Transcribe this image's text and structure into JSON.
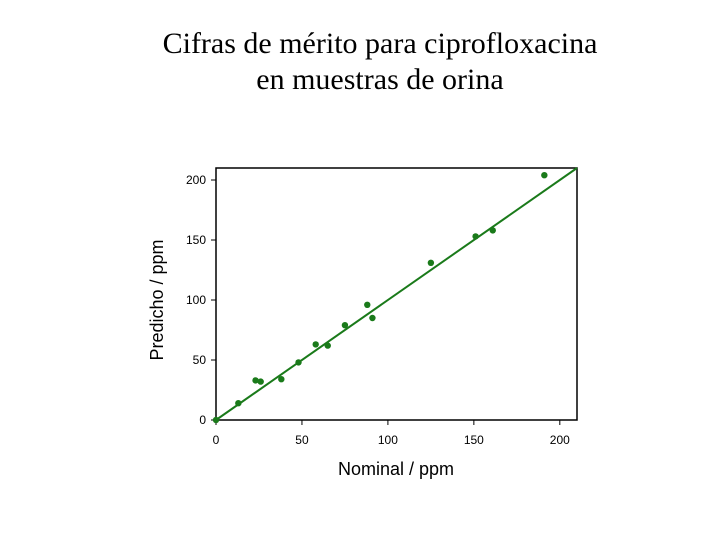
{
  "chart_data": {
    "type": "scatter",
    "title_line1": "Cifras de mérito para ciprofloxacina",
    "title_line2": "en muestras de orina",
    "xlabel": "Nominal / ppm",
    "ylabel": "Predicho / ppm",
    "xlim": [
      0,
      210
    ],
    "ylim": [
      0,
      210
    ],
    "x_ticks": [
      "0",
      "50",
      "100",
      "150",
      "200"
    ],
    "y_ticks": [
      "0",
      "50",
      "100",
      "150",
      "200"
    ],
    "grid": false,
    "color": "#1a7a1a",
    "points": [
      {
        "x": 0,
        "y": 0
      },
      {
        "x": 13,
        "y": 14
      },
      {
        "x": 23,
        "y": 33
      },
      {
        "x": 26,
        "y": 32
      },
      {
        "x": 38,
        "y": 34
      },
      {
        "x": 48,
        "y": 48
      },
      {
        "x": 58,
        "y": 63
      },
      {
        "x": 65,
        "y": 62
      },
      {
        "x": 75,
        "y": 79
      },
      {
        "x": 88,
        "y": 96
      },
      {
        "x": 91,
        "y": 85
      },
      {
        "x": 125,
        "y": 131
      },
      {
        "x": 151,
        "y": 153
      },
      {
        "x": 161,
        "y": 158
      },
      {
        "x": 191,
        "y": 204
      }
    ],
    "fit_line": {
      "x": [
        0,
        210
      ],
      "y": [
        0,
        210
      ]
    }
  }
}
